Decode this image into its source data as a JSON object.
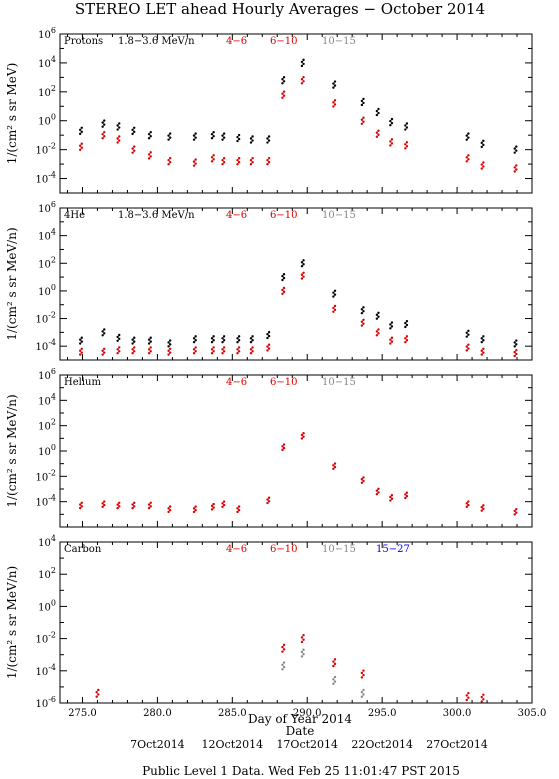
{
  "title": "STEREO LET ahead Hourly Averages − October 2014",
  "footer": "Public Level 1 Data. Wed Feb 25 11:01:47 PST 2015",
  "colors": {
    "ch1": "#000000",
    "ch2": "#dd0000",
    "ch3": "#888888",
    "ch4": "#0000ff"
  },
  "chart_data": [
    {
      "type": "scatter",
      "title": "Protons",
      "ylabel": "1/(cm² s sr MeV)",
      "xlabel": "",
      "yscale": "log",
      "ylim_exp": [
        -5,
        6
      ],
      "ytick_exps": [
        -4,
        -2,
        0,
        2,
        4,
        6
      ],
      "xlim": [
        273.5,
        305.0
      ],
      "legend": [
        "1.8−3.6 MeV/n",
        "4−6",
        "6−10",
        "10−15"
      ],
      "series": [
        {
          "name": "1.8−3.6 MeV/n",
          "color": "#000000",
          "x": [
            274.9,
            276.4,
            277.4,
            278.4,
            279.5,
            280.8,
            282.5,
            283.7,
            284.4,
            285.4,
            286.3,
            287.4,
            288.4,
            289.7,
            291.8,
            293.7,
            294.7,
            295.6,
            296.6,
            300.7,
            301.7,
            303.9
          ],
          "y_exp": [
            -0.7,
            -0.2,
            -0.4,
            -0.7,
            -1.0,
            -1.1,
            -1.1,
            -1.0,
            -1.1,
            -1.2,
            -1.3,
            -1.3,
            2.8,
            4.0,
            2.5,
            1.3,
            0.6,
            -0.1,
            -0.4,
            -1.1,
            -1.6,
            -2.0
          ]
        },
        {
          "name": "4−6",
          "color": "#dd0000",
          "x": [
            274.9,
            276.4,
            277.4,
            278.4,
            279.5,
            280.8,
            282.5,
            283.7,
            284.4,
            285.4,
            286.3,
            287.4,
            288.4,
            289.7,
            291.8,
            293.7,
            294.7,
            295.6,
            296.6,
            300.7,
            301.7,
            303.9
          ],
          "y_exp": [
            -1.8,
            -1.0,
            -1.3,
            -2.0,
            -2.4,
            -2.8,
            -2.9,
            -2.6,
            -2.8,
            -2.8,
            -2.8,
            -2.8,
            1.8,
            2.8,
            1.2,
            0.0,
            -0.9,
            -1.5,
            -1.7,
            -2.6,
            -3.1,
            -3.3
          ]
        }
      ]
    },
    {
      "type": "scatter",
      "title": "4He",
      "ylabel": "1/(cm² s sr MeV/n)",
      "xlabel": "",
      "yscale": "log",
      "ylim_exp": [
        -5,
        6
      ],
      "ytick_exps": [
        -4,
        -2,
        0,
        2,
        4,
        6
      ],
      "xlim": [
        273.5,
        305.0
      ],
      "legend": [
        "1.8−3.6 MeV/n",
        "4−6",
        "6−10",
        "10−15"
      ],
      "series": [
        {
          "name": "1.8−3.6 MeV/n",
          "color": "#000000",
          "x": [
            274.9,
            276.4,
            277.4,
            278.4,
            279.5,
            280.8,
            282.5,
            283.7,
            284.4,
            285.4,
            286.3,
            287.4,
            288.4,
            289.7,
            291.8,
            293.7,
            294.7,
            295.6,
            296.6,
            300.7,
            301.7,
            303.9
          ],
          "y_exp": [
            -3.6,
            -3.0,
            -3.4,
            -3.6,
            -3.6,
            -3.8,
            -3.5,
            -3.5,
            -3.5,
            -3.5,
            -3.5,
            -3.2,
            1.0,
            2.0,
            -0.2,
            -1.4,
            -1.8,
            -2.5,
            -2.4,
            -3.1,
            -3.5,
            -3.8
          ]
        },
        {
          "name": "4−6",
          "color": "#dd0000",
          "x": [
            274.9,
            276.4,
            277.4,
            278.4,
            279.5,
            280.8,
            282.5,
            283.7,
            284.4,
            285.4,
            286.3,
            287.4,
            288.4,
            289.7,
            291.8,
            293.7,
            294.7,
            295.6,
            296.6,
            300.7,
            301.7,
            303.9
          ],
          "y_exp": [
            -4.4,
            -4.4,
            -4.3,
            -4.3,
            -4.3,
            -4.4,
            -4.3,
            -4.3,
            -4.3,
            -4.3,
            -4.3,
            -4.1,
            0.0,
            1.1,
            -1.3,
            -2.3,
            -3.0,
            -3.6,
            -3.5,
            -4.1,
            -4.4,
            -4.5
          ]
        }
      ]
    },
    {
      "type": "scatter",
      "title": "Helium",
      "ylabel": "1/(cm² s sr MeV/n)",
      "xlabel": "",
      "yscale": "log",
      "ylim_exp": [
        -6,
        6
      ],
      "ytick_exps": [
        -4,
        -2,
        0,
        2,
        4,
        6
      ],
      "xlim": [
        273.5,
        305.0
      ],
      "legend": [
        "4−6",
        "6−10",
        "10−15"
      ],
      "series": [
        {
          "name": "4−6",
          "color": "#dd0000",
          "x": [
            274.9,
            276.4,
            277.4,
            278.4,
            279.5,
            280.8,
            282.5,
            283.7,
            284.4,
            285.4,
            287.4,
            288.4,
            289.7,
            291.8,
            293.7,
            294.7,
            295.6,
            296.6,
            300.7,
            301.7,
            303.9
          ],
          "y_exp": [
            -4.3,
            -4.2,
            -4.3,
            -4.3,
            -4.3,
            -4.6,
            -4.6,
            -4.4,
            -4.2,
            -4.6,
            -3.9,
            0.3,
            1.2,
            -1.2,
            -2.3,
            -3.2,
            -3.7,
            -3.5,
            -4.2,
            -4.5,
            -4.8
          ]
        }
      ]
    },
    {
      "type": "scatter",
      "title": "Carbon",
      "ylabel": "1/(cm² s sr MeV/n)",
      "xlabel": "Day of Year 2014",
      "yscale": "log",
      "ylim_exp": [
        -6,
        4
      ],
      "ytick_exps": [
        -6,
        -4,
        -2,
        0,
        2,
        4
      ],
      "xlim": [
        273.5,
        305.0
      ],
      "legend": [
        "4−6",
        "6−10",
        "10−15",
        "15−27"
      ],
      "series": [
        {
          "name": "4−6",
          "color": "#dd0000",
          "x": [
            276.0,
            288.4,
            289.7,
            291.8,
            293.7,
            300.7,
            301.7
          ],
          "y_exp": [
            -5.4,
            -2.6,
            -2.0,
            -3.5,
            -4.2,
            -5.6,
            -5.7
          ]
        },
        {
          "name": "10−15",
          "color": "#888888",
          "x": [
            288.4,
            289.7,
            291.8,
            293.7
          ],
          "y_exp": [
            -3.7,
            -2.9,
            -4.6,
            -5.4
          ]
        }
      ]
    }
  ],
  "x_ticks": [
    "275.0",
    "280.0",
    "285.0",
    "290.0",
    "295.0",
    "300.0",
    "305.0"
  ],
  "x_tick_values": [
    275,
    280,
    285,
    290,
    295,
    300,
    305
  ],
  "x_label": "Day of Year 2014",
  "date_label": "Date",
  "date_ticks": [
    {
      "label": "7Oct2014",
      "day": 280
    },
    {
      "label": "12Oct2014",
      "day": 285
    },
    {
      "label": "17Oct2014",
      "day": 290
    },
    {
      "label": "22Oct2014",
      "day": 295
    },
    {
      "label": "27Oct2014",
      "day": 300
    }
  ]
}
